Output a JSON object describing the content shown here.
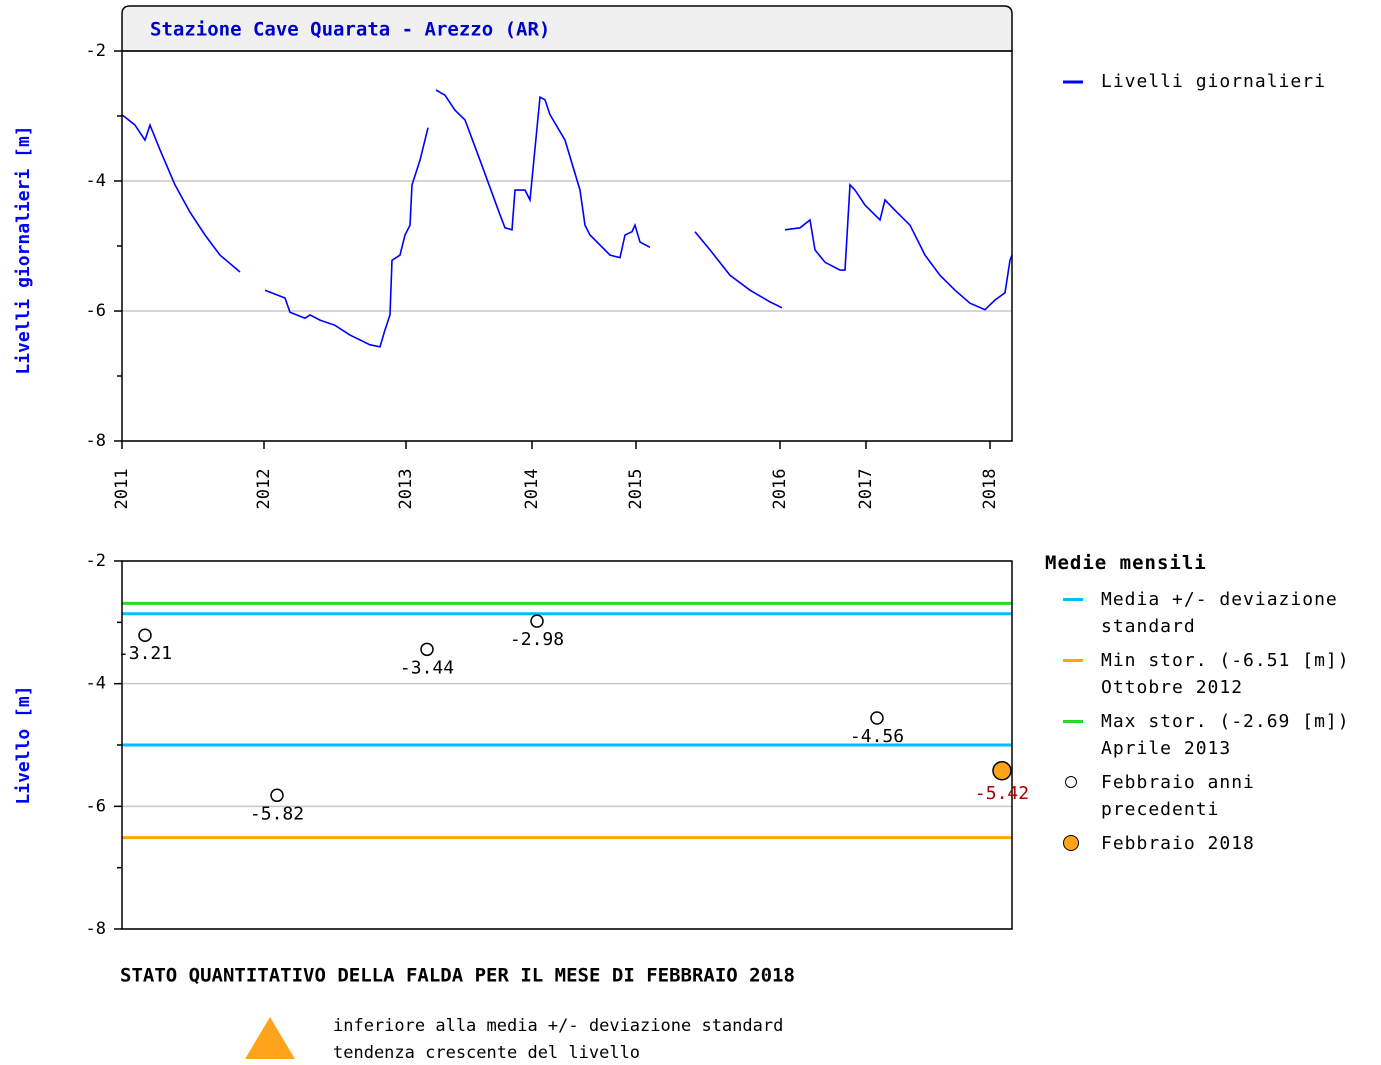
{
  "chart_data": [
    {
      "type": "line",
      "title": "Stazione Cave Quarata - Arezzo (AR)",
      "ylabel": "Livelli giornalieri [m]",
      "xlim": [
        0,
        890
      ],
      "xticks": [
        {
          "value": 0,
          "label": "2011"
        },
        {
          "value": 142,
          "label": "2012"
        },
        {
          "value": 284,
          "label": "2013"
        },
        {
          "value": 410,
          "label": "2014"
        },
        {
          "value": 514,
          "label": "2015"
        },
        {
          "value": 658,
          "label": "2016"
        },
        {
          "value": 744,
          "label": "2017"
        },
        {
          "value": 868,
          "label": "2018"
        }
      ],
      "ylim": [
        -8,
        -2
      ],
      "yticks": [
        -8,
        -6,
        -4,
        -2
      ],
      "minor_yticks": [
        -7,
        -5,
        -3
      ],
      "grid": true,
      "series": [
        {
          "name": "Livelli giornalieri",
          "color": "#0000ff",
          "x": [
            0,
            13,
            23,
            28,
            38,
            53,
            68,
            83,
            98,
            118,
            130,
            143,
            163,
            168,
            183,
            188,
            198,
            213,
            228,
            248,
            258,
            263,
            268,
            270,
            278,
            283,
            288,
            290,
            298,
            306,
            310,
            314,
            323,
            333,
            343,
            358,
            378,
            383,
            390,
            393,
            403,
            408,
            418,
            423,
            428,
            443,
            458,
            463,
            468,
            488,
            498,
            503,
            510,
            513,
            518,
            528,
            550,
            573,
            588,
            608,
            628,
            648,
            660,
            661,
            663,
            678,
            688,
            693,
            703,
            718,
            723,
            728,
            733,
            743,
            758,
            763,
            773,
            788,
            803,
            818,
            833,
            848,
            863,
            873,
            883,
            888,
            890
          ],
          "values": [
            -2.98,
            -3.14,
            -3.37,
            -3.14,
            -3.52,
            -4.06,
            -4.48,
            -4.83,
            -5.14,
            -5.4,
            null,
            -5.68,
            -5.8,
            -6.02,
            -6.11,
            -6.06,
            -6.14,
            -6.22,
            -6.37,
            -6.52,
            -6.55,
            -6.29,
            -6.06,
            -5.22,
            -5.14,
            -4.83,
            -4.68,
            -4.06,
            -3.68,
            -3.18,
            null,
            -2.6,
            -2.68,
            -2.91,
            -3.06,
            -3.68,
            -4.52,
            -4.72,
            -4.75,
            -4.14,
            -4.14,
            -4.29,
            -2.71,
            -2.75,
            -2.98,
            -3.37,
            -4.14,
            -4.68,
            -4.83,
            -5.14,
            -5.18,
            -4.83,
            -4.78,
            -4.68,
            -4.94,
            -5.02,
            null,
            -4.78,
            -5.06,
            -5.45,
            -5.68,
            -5.86,
            -5.95,
            null,
            -4.75,
            -4.72,
            -4.6,
            -5.06,
            -5.25,
            -5.37,
            -5.37,
            -4.06,
            -4.14,
            -4.37,
            -4.6,
            -4.29,
            -4.45,
            -4.68,
            -5.14,
            -5.45,
            -5.68,
            -5.88,
            -5.98,
            -5.83,
            -5.72,
            -5.22,
            -5.14
          ]
        }
      ]
    },
    {
      "type": "scatter",
      "ylabel": "Livello [m]",
      "legend_title": "Medie mensili",
      "xlim": [
        0,
        890
      ],
      "ylim": [
        -8,
        -2
      ],
      "yticks": [
        -8,
        -6,
        -4,
        -2
      ],
      "minor_yticks": [
        -7,
        -5,
        -3
      ],
      "grid": true,
      "lines": [
        {
          "name": "Media +/- deviazione standard",
          "color": "#00bfff",
          "values": [
            -2.86,
            -5.0
          ]
        },
        {
          "name": "Min stor. (-6.51 [m]) Ottobre 2012",
          "color": "#ffa500",
          "values": [
            -6.51
          ]
        },
        {
          "name": "Max stor. (-2.69 [m]) Aprile 2013",
          "color": "#22dd22",
          "values": [
            -2.69
          ]
        }
      ],
      "series": [
        {
          "name": "Febbraio anni precedenti",
          "color": "#ffffff",
          "label_color": "#000000",
          "x": [
            23,
            155,
            305,
            415,
            755
          ],
          "values": [
            -3.21,
            -5.82,
            -3.44,
            -2.98,
            -4.56
          ]
        },
        {
          "name": "Febbraio 2018",
          "color": "#ffa31a",
          "label_color": "#aa0000",
          "x": [
            880
          ],
          "values": [
            -5.42
          ]
        }
      ]
    }
  ],
  "status": {
    "title": "STATO QUANTITATIVO DELLA FALDA PER IL MESE DI FEBBRAIO 2018",
    "lines": [
      "inferiore alla media +/- deviazione standard",
      "tendenza crescente del livello"
    ]
  }
}
